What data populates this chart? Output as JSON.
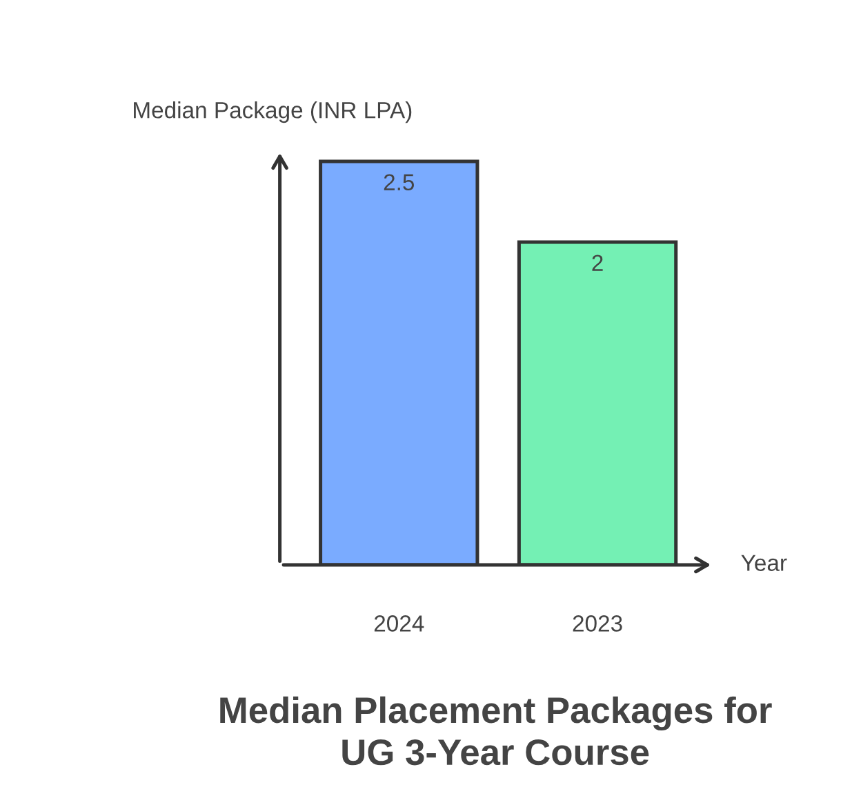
{
  "chart_data": {
    "type": "bar",
    "title": "Median Placement Packages for\nUG 3-Year Course",
    "xlabel": "Year",
    "ylabel": "Median Package (INR LPA)",
    "categories": [
      "2024",
      "2023"
    ],
    "values": [
      2.5,
      2
    ],
    "colors": [
      "#7aabff",
      "#74f0b4"
    ],
    "data_labels": true,
    "grid": false,
    "legend": false
  }
}
